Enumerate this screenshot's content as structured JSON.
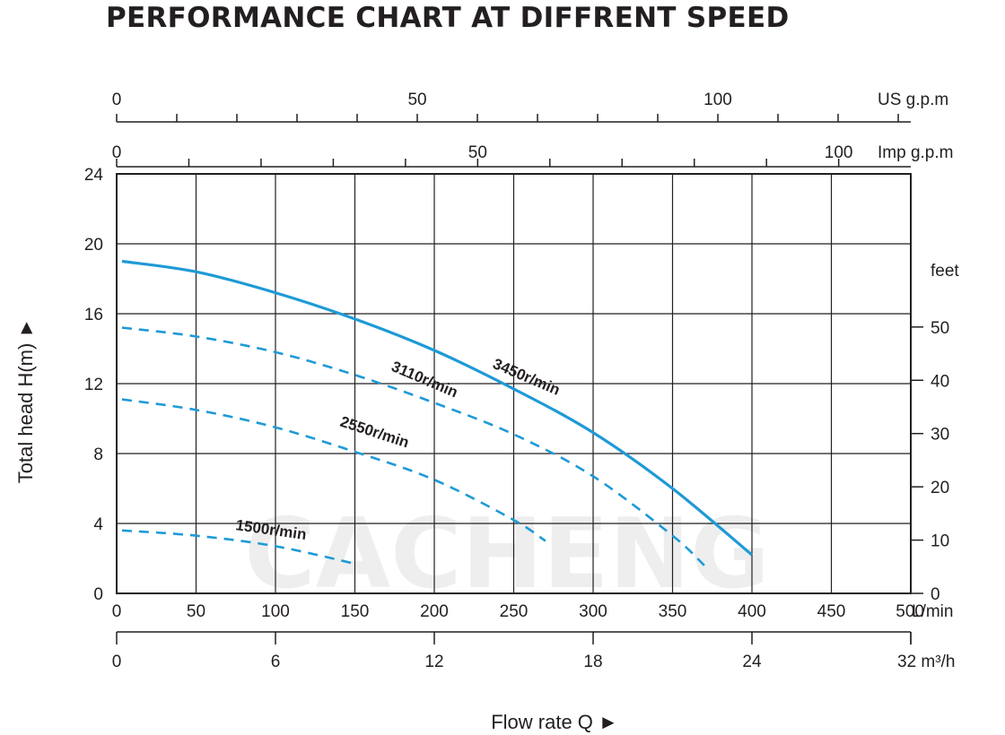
{
  "chart_data": {
    "type": "line",
    "title": "PERFORMANCE CHART AT DIFFRENT SPEED",
    "ylabel": "Total  head H(m) ►",
    "xlabel": "Flow rate   Q  ►",
    "watermark": "CACHENG",
    "x_unit": "L/min",
    "xlim": [
      0,
      500
    ],
    "ylim": [
      0,
      24
    ],
    "grid": true,
    "axes": {
      "left_head_m": {
        "ticks": [
          "0",
          "4",
          "8",
          "12",
          "16",
          "20",
          "24"
        ]
      },
      "right_feet": {
        "unit": "feet",
        "ticks": [
          "0",
          "10",
          "20",
          "30",
          "40",
          "50"
        ]
      },
      "bottom_lmin": {
        "unit": "L/min",
        "ticks": [
          "0",
          "50",
          "100",
          "150",
          "200",
          "250",
          "300",
          "350",
          "400",
          "450",
          "500"
        ]
      },
      "bottom_m3h": {
        "unit": "32 m³/h",
        "ticks": [
          "0",
          "6",
          "12",
          "18",
          "24"
        ]
      },
      "top_us_gpm": {
        "unit": "US g.p.m",
        "ticks": [
          "0",
          "50",
          "100"
        ]
      },
      "top_imp_gpm": {
        "unit": "Imp g.p.m",
        "ticks": [
          "0",
          "50",
          "100"
        ]
      }
    },
    "series": [
      {
        "name": "3450r/min",
        "style": "solid",
        "color": "#1e9ad6",
        "x": [
          0,
          50,
          100,
          150,
          200,
          250,
          300,
          350,
          400
        ],
        "y": [
          19.0,
          18.4,
          17.2,
          15.7,
          13.9,
          11.7,
          9.2,
          6.0,
          2.2
        ]
      },
      {
        "name": "3110r/min",
        "style": "dashed",
        "color": "#1e9ad6",
        "x": [
          0,
          50,
          100,
          150,
          200,
          250,
          300,
          350,
          370
        ],
        "y": [
          15.2,
          14.7,
          13.8,
          12.5,
          10.9,
          9.1,
          6.7,
          3.3,
          1.6
        ]
      },
      {
        "name": "2550r/min",
        "style": "dashed",
        "color": "#1e9ad6",
        "x": [
          0,
          50,
          100,
          150,
          200,
          250,
          270
        ],
        "y": [
          11.1,
          10.5,
          9.5,
          8.1,
          6.5,
          4.2,
          3.0
        ]
      },
      {
        "name": "1500r/min",
        "style": "dashed",
        "color": "#1e9ad6",
        "x": [
          0,
          50,
          100,
          150
        ],
        "y": [
          3.6,
          3.3,
          2.7,
          1.7
        ]
      }
    ]
  }
}
